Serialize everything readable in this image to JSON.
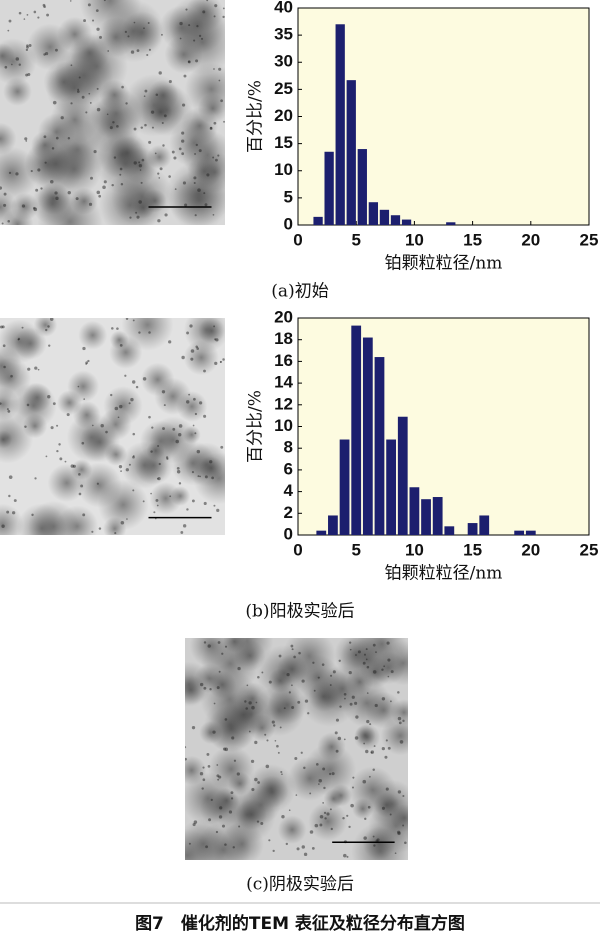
{
  "chart_data": [
    {
      "type": "histogram",
      "ylabel": "百分比/%",
      "xlabel": "铂颗粒粒径/nm",
      "color": "#1c1f6e",
      "background": "#fdfbe0",
      "bins": [
        1.25,
        2.2,
        3.15,
        4.1,
        5.05,
        6.0,
        6.95,
        7.9,
        8.85,
        9.8,
        10.75,
        11.7,
        12.65,
        13.6
      ],
      "values": [
        1.5,
        13.5,
        37,
        26.7,
        14,
        4.2,
        2.8,
        1.8,
        1,
        0,
        0,
        0,
        0.5
      ],
      "xlim": [
        0,
        25
      ],
      "xticks": [
        0,
        5,
        10,
        15,
        20,
        25
      ],
      "ylim": [
        0,
        40
      ],
      "yticks": [
        0,
        5,
        10,
        15,
        20,
        25,
        30,
        35,
        40
      ]
    },
    {
      "type": "histogram",
      "ylabel": "百分比/%",
      "xlabel": "铂颗粒粒径/nm",
      "color": "#1c1f6e",
      "background": "#fdfbe0",
      "bins": [
        1.5,
        2.5,
        3.5,
        4.5,
        5.5,
        6.5,
        7.5,
        8.5,
        9.5,
        10.5,
        11.5,
        12.5,
        13.5,
        14.5,
        15.5,
        16.5,
        17.5,
        18.5,
        19.5,
        20.5
      ],
      "values": [
        0.4,
        1.8,
        8.8,
        19.3,
        18.2,
        16.4,
        8.8,
        10.9,
        4.4,
        3.3,
        3.5,
        0.8,
        0,
        1.1,
        1.8,
        0,
        0,
        0.4,
        0.4
      ],
      "xlim": [
        0,
        25
      ],
      "xticks": [
        0,
        5,
        10,
        15,
        20,
        25
      ],
      "ylim": [
        0,
        20
      ],
      "yticks": [
        0,
        2,
        4,
        6,
        8,
        10,
        12,
        14,
        16,
        18,
        20
      ]
    }
  ],
  "captions": [
    "(a)初始",
    "(b)阳极实验后",
    "(c)阴极实验后"
  ],
  "figure_caption": "图7　催化剂的TEM 表征及粒径分布直方图"
}
